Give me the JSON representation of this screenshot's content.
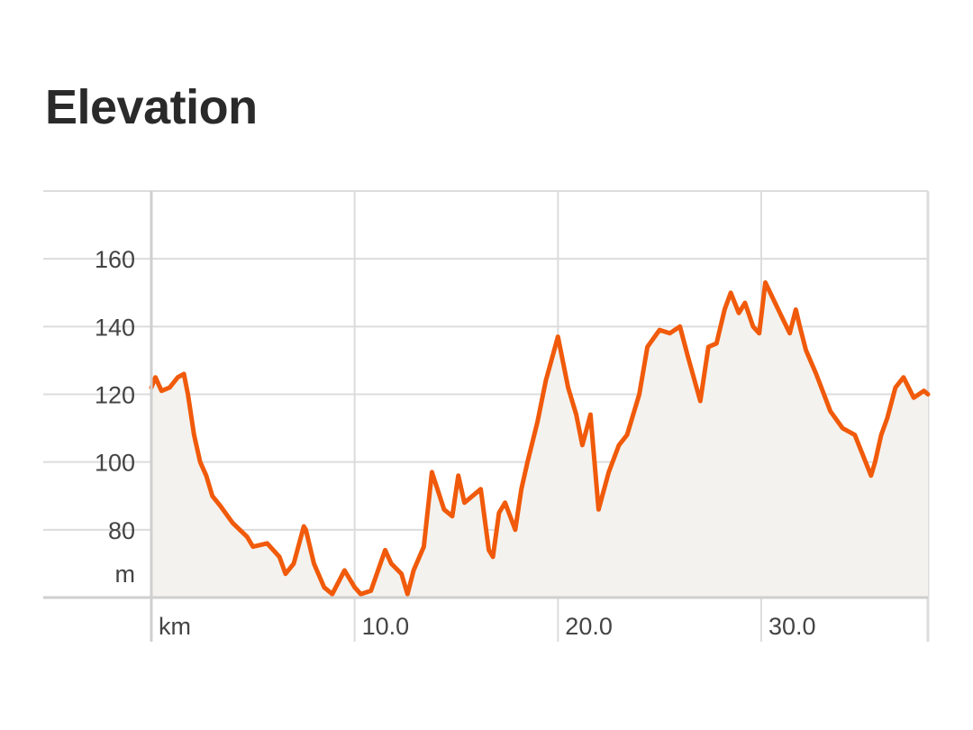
{
  "title": "Elevation",
  "chart_data": {
    "type": "area",
    "title": "Elevation",
    "x_unit_label": "km",
    "y_unit_label": "m",
    "xlim": [
      0,
      38.2
    ],
    "ylim": [
      60,
      180
    ],
    "x_ticks": [
      {
        "value": 10,
        "label": "10.0"
      },
      {
        "value": 20,
        "label": "20.0"
      },
      {
        "value": 30,
        "label": "30.0"
      }
    ],
    "y_ticks": [
      {
        "value": 80,
        "label": "80"
      },
      {
        "value": 100,
        "label": "100"
      },
      {
        "value": 120,
        "label": "120"
      },
      {
        "value": 140,
        "label": "140"
      },
      {
        "value": 160,
        "label": "160"
      }
    ],
    "grid": true,
    "line_color": "#f05a0a",
    "fill_color": "#f3f2ee",
    "grid_color": "#dcdcdc",
    "series": [
      {
        "x": [
          0,
          0.2,
          0.5,
          0.9,
          1.3,
          1.6,
          1.8,
          2.1,
          2.4,
          2.7,
          3.0,
          3.4,
          4.0,
          4.7,
          5.0,
          5.7,
          6.3,
          6.6,
          7.0,
          7.5,
          7.6,
          8.0,
          8.5,
          8.9,
          9.5,
          10.0,
          10.3,
          10.8,
          11.5,
          11.8,
          12.3,
          12.6,
          12.9,
          13.4,
          13.8,
          14.4,
          14.8,
          15.1,
          15.4,
          16.2,
          16.6,
          16.8,
          17.1,
          17.4,
          17.9,
          18.2,
          18.5,
          19.0,
          19.4,
          20.0,
          20.5,
          20.9,
          21.2,
          21.6,
          22.0,
          22.5,
          23.0,
          23.4,
          24.0,
          24.4,
          25.0,
          25.5,
          26.0,
          26.4,
          27.0,
          27.4,
          27.8,
          28.2,
          28.5,
          28.9,
          29.2,
          29.6,
          29.9,
          30.2,
          30.6,
          31.0,
          31.4,
          31.7,
          31.9,
          32.2,
          32.7,
          33.4,
          34.0,
          34.6,
          35.0,
          35.4,
          35.6,
          35.9,
          36.2,
          36.6,
          37.0,
          37.5,
          38.0,
          38.2
        ],
        "values": [
          122,
          125,
          121,
          122,
          125,
          126,
          120,
          108,
          100,
          96,
          90,
          87,
          82,
          78,
          75,
          76,
          72,
          67,
          70,
          81,
          80,
          70,
          63,
          61,
          68,
          63,
          61,
          62,
          74,
          70,
          67,
          61,
          68,
          75,
          97,
          86,
          84,
          96,
          88,
          92,
          74,
          72,
          85,
          88,
          80,
          92,
          100,
          112,
          124,
          137,
          122,
          114,
          105,
          114,
          86,
          97,
          105,
          108,
          120,
          134,
          139,
          138,
          140,
          131,
          118,
          134,
          135,
          145,
          150,
          144,
          147,
          140,
          138,
          153,
          148,
          143,
          138,
          145,
          140,
          133,
          126,
          115,
          110,
          108,
          102,
          96,
          100,
          108,
          113,
          122,
          125,
          119,
          121,
          120
        ]
      }
    ]
  }
}
